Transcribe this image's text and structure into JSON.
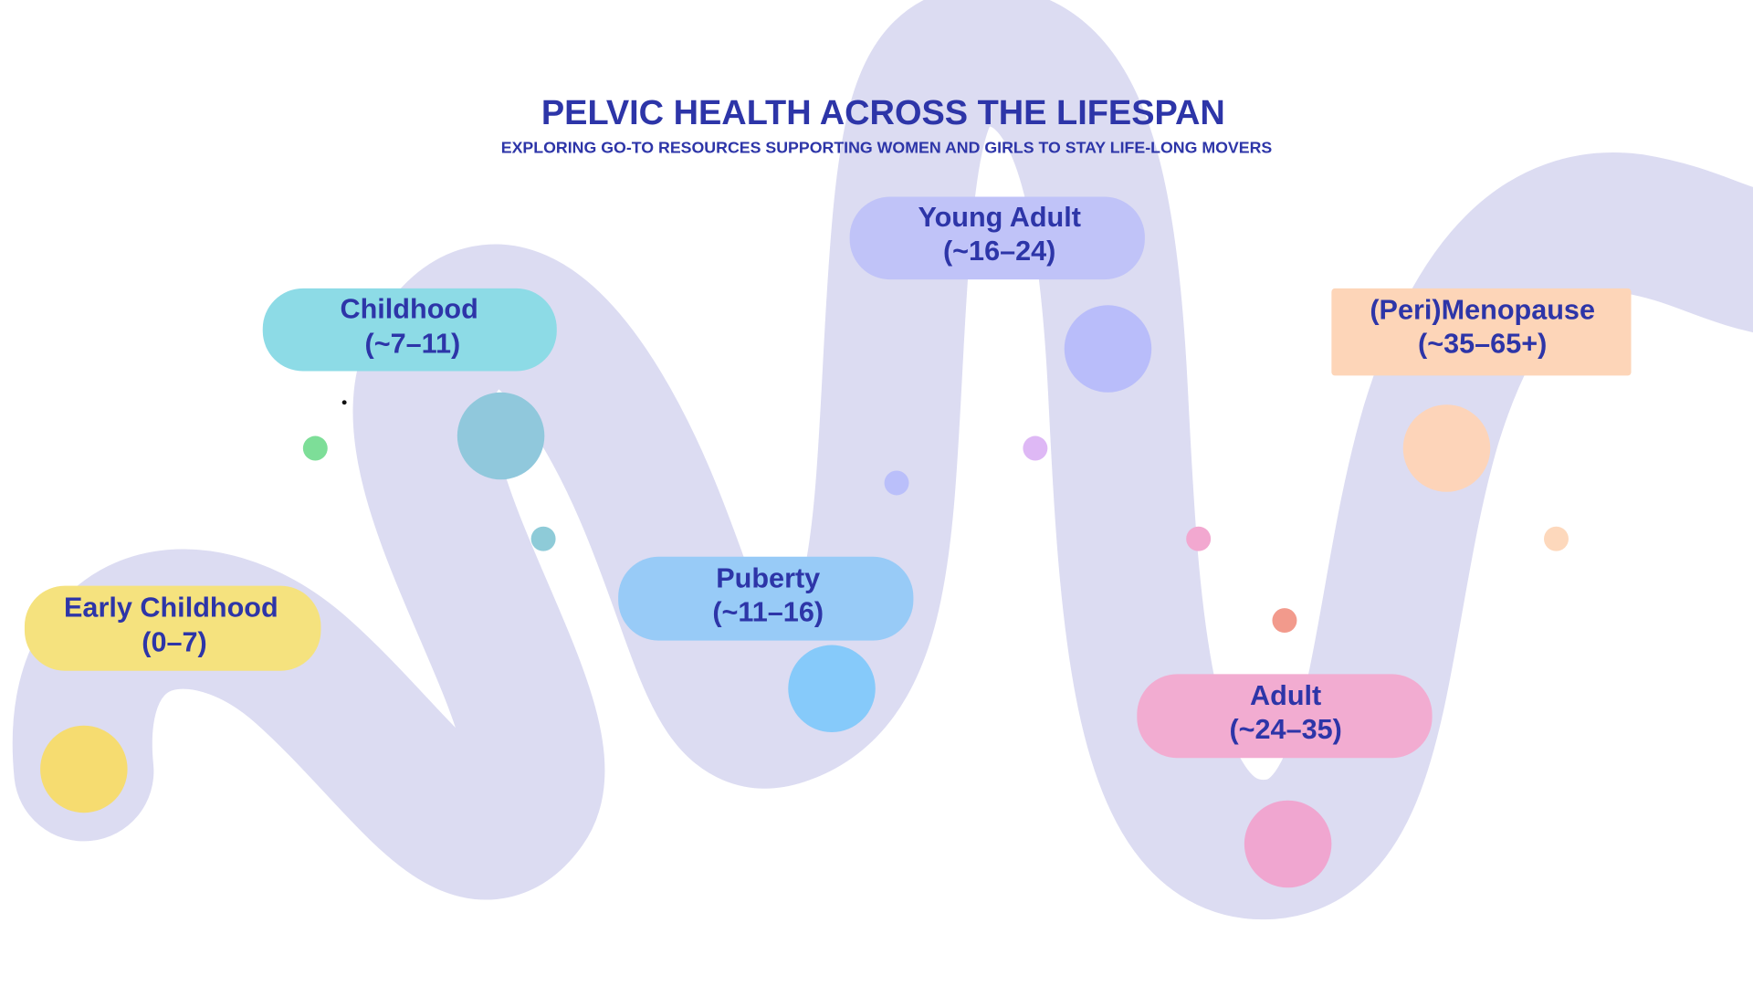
{
  "title": "PELVIC HEALTH ACROSS THE LIFESPAN",
  "subtitle": "EXPLORING GO-TO RESOURCES SUPPORTING WOMEN AND GIRLS TO STAY LIFE-LONG MOVERS",
  "stages": [
    {
      "name": "Early Childhood",
      "range": "(0–7)"
    },
    {
      "name": "Childhood",
      "range": "(~7–11)"
    },
    {
      "name": "Puberty",
      "range": "(~11–16)"
    },
    {
      "name": "Young Adult",
      "range": "(~16–24)"
    },
    {
      "name": "Adult",
      "range": "(~24–35)"
    },
    {
      "name": "(Peri)Menopause",
      "range": "(~35–65+)"
    }
  ]
}
